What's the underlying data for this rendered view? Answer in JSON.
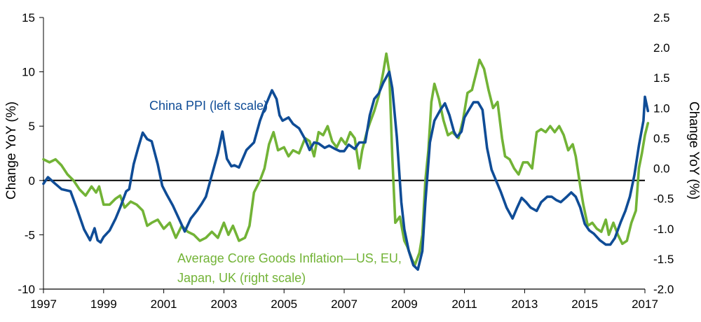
{
  "chart_data": {
    "type": "line",
    "xlabel": "",
    "ylabel_left": "Change YoY (%)",
    "ylabel_right": "Change YoY (%)",
    "xlim": [
      1997,
      2017
    ],
    "ylim_left": [
      -10,
      15
    ],
    "ylim_right": [
      -2.0,
      2.5
    ],
    "x_ticks": [
      "1997",
      "1999",
      "2001",
      "2003",
      "2005",
      "2007",
      "2009",
      "2011",
      "2013",
      "2015",
      "2017"
    ],
    "y_ticks_left": [
      "15",
      "10",
      "5",
      "0",
      "-5",
      "-10"
    ],
    "y_ticks_right": [
      "2.5",
      "2.0",
      "1.5",
      "1.0",
      "0.5",
      "0.0",
      "-0.5",
      "-1.0",
      "-1.5",
      "-2.0"
    ],
    "grid": false,
    "zero_line": true,
    "colors": {
      "china_ppi": "#0f4c96",
      "core_goods": "#72b336"
    },
    "annotations": {
      "china_ppi": "China PPI (left scale)",
      "core_goods_line1": "Average Core Goods Inflation—US, EU,",
      "core_goods_line2": "Japan, UK (right scale)"
    },
    "series": [
      {
        "name": "China PPI (left scale)",
        "axis": "left",
        "x": [
          1997.0,
          1997.15,
          1997.35,
          1997.6,
          1997.9,
          1998.1,
          1998.35,
          1998.55,
          1998.7,
          1998.8,
          1998.9,
          1999.0,
          1999.2,
          1999.4,
          1999.55,
          1999.75,
          1999.85,
          2000.0,
          2000.15,
          2000.3,
          2000.45,
          2000.6,
          2000.8,
          2000.95,
          2001.1,
          2001.3,
          2001.5,
          2001.7,
          2001.9,
          2002.1,
          2002.25,
          2002.4,
          2002.6,
          2002.8,
          2002.95,
          2003.1,
          2003.25,
          2003.35,
          2003.5,
          2003.75,
          2004.0,
          2004.2,
          2004.4,
          2004.6,
          2004.75,
          2004.85,
          2004.95,
          2005.15,
          2005.3,
          2005.5,
          2005.7,
          2005.85,
          2006.0,
          2006.15,
          2006.35,
          2006.5,
          2006.7,
          2006.85,
          2007.0,
          2007.15,
          2007.35,
          2007.5,
          2007.7,
          2007.85,
          2008.0,
          2008.15,
          2008.3,
          2008.5,
          2008.6,
          2008.75,
          2008.9,
          2009.0,
          2009.15,
          2009.3,
          2009.45,
          2009.6,
          2009.7,
          2009.85,
          2010.0,
          2010.2,
          2010.35,
          2010.5,
          2010.65,
          2010.75,
          2010.9,
          2011.0,
          2011.15,
          2011.3,
          2011.45,
          2011.6,
          2011.75,
          2011.9,
          2012.05,
          2012.2,
          2012.4,
          2012.6,
          2012.75,
          2012.9,
          2013.05,
          2013.2,
          2013.4,
          2013.55,
          2013.75,
          2013.9,
          2014.05,
          2014.2,
          2014.4,
          2014.55,
          2014.7,
          2014.85,
          2015.0,
          2015.15,
          2015.3,
          2015.5,
          2015.7,
          2015.85,
          2016.0,
          2016.2,
          2016.35,
          2016.5,
          2016.65,
          2016.8,
          2016.95,
          2017.0,
          2017.1
        ],
        "values": [
          -0.3,
          0.3,
          -0.2,
          -0.8,
          -1.0,
          -2.5,
          -4.5,
          -5.5,
          -4.4,
          -5.5,
          -5.7,
          -5.2,
          -4.6,
          -3.5,
          -2.5,
          -1.0,
          -0.8,
          1.5,
          3.0,
          4.4,
          3.8,
          3.6,
          1.5,
          -0.5,
          -1.3,
          -2.3,
          -3.5,
          -4.7,
          -3.5,
          -2.8,
          -2.2,
          -1.5,
          0.5,
          2.5,
          4.5,
          2.0,
          1.3,
          1.4,
          1.2,
          2.8,
          3.5,
          5.5,
          7.0,
          8.3,
          7.5,
          6.0,
          5.5,
          5.8,
          5.2,
          4.8,
          3.8,
          2.8,
          3.5,
          3.4,
          3.0,
          3.2,
          2.9,
          2.7,
          2.7,
          3.3,
          2.9,
          3.5,
          3.5,
          6.0,
          7.5,
          8.0,
          9.0,
          10.0,
          8.5,
          4.0,
          -2.0,
          -4.5,
          -6.5,
          -7.8,
          -8.2,
          -6.5,
          -2.0,
          3.5,
          5.5,
          6.5,
          7.1,
          6.0,
          4.5,
          4.0,
          4.5,
          5.8,
          6.5,
          7.2,
          7.2,
          6.5,
          3.0,
          1.0,
          0.0,
          -1.0,
          -2.5,
          -3.5,
          -2.5,
          -1.6,
          -2.0,
          -2.5,
          -2.8,
          -2.0,
          -1.5,
          -1.5,
          -1.8,
          -2.0,
          -1.5,
          -1.1,
          -1.5,
          -2.5,
          -4.0,
          -4.6,
          -4.9,
          -5.5,
          -5.9,
          -5.9,
          -5.3,
          -3.8,
          -2.8,
          -1.5,
          0.5,
          3.2,
          5.5,
          7.7,
          6.4
        ],
        "color": "#0f4c96"
      },
      {
        "name": "Average Core Goods Inflation—US, EU, Japan, UK (right scale)",
        "axis": "right",
        "x": [
          1997.0,
          1997.2,
          1997.4,
          1997.6,
          1997.8,
          1998.0,
          1998.2,
          1998.4,
          1998.6,
          1998.75,
          1998.85,
          1999.0,
          1999.2,
          1999.4,
          1999.55,
          1999.7,
          1999.9,
          2000.1,
          2000.3,
          2000.45,
          2000.6,
          2000.8,
          2001.0,
          2001.2,
          2001.4,
          2001.6,
          2001.8,
          2002.0,
          2002.2,
          2002.4,
          2002.6,
          2002.8,
          2003.0,
          2003.15,
          2003.3,
          2003.5,
          2003.7,
          2003.85,
          2004.0,
          2004.2,
          2004.35,
          2004.5,
          2004.65,
          2004.8,
          2005.0,
          2005.15,
          2005.3,
          2005.5,
          2005.7,
          2005.85,
          2006.0,
          2006.15,
          2006.3,
          2006.45,
          2006.6,
          2006.75,
          2006.9,
          2007.05,
          2007.2,
          2007.35,
          2007.5,
          2007.6,
          2007.75,
          2007.85,
          2008.0,
          2008.15,
          2008.3,
          2008.4,
          2008.5,
          2008.6,
          2008.7,
          2008.85,
          2009.0,
          2009.1,
          2009.25,
          2009.35,
          2009.5,
          2009.6,
          2009.7,
          2009.8,
          2009.9,
          2010.0,
          2010.15,
          2010.3,
          2010.45,
          2010.6,
          2010.8,
          2010.95,
          2011.1,
          2011.25,
          2011.4,
          2011.5,
          2011.65,
          2011.8,
          2011.95,
          2012.1,
          2012.25,
          2012.35,
          2012.5,
          2012.65,
          2012.8,
          2012.95,
          2013.1,
          2013.25,
          2013.4,
          2013.55,
          2013.7,
          2013.85,
          2014.0,
          2014.15,
          2014.3,
          2014.45,
          2014.6,
          2014.7,
          2014.85,
          2014.95,
          2015.1,
          2015.25,
          2015.4,
          2015.55,
          2015.7,
          2015.8,
          2015.95,
          2016.1,
          2016.25,
          2016.4,
          2016.55,
          2016.7,
          2016.8,
          2016.9,
          2017.0,
          2017.1
        ],
        "values": [
          0.15,
          0.1,
          0.15,
          0.05,
          -0.1,
          -0.2,
          -0.35,
          -0.45,
          -0.3,
          -0.4,
          -0.3,
          -0.6,
          -0.6,
          -0.5,
          -0.45,
          -0.65,
          -0.55,
          -0.6,
          -0.7,
          -0.95,
          -0.9,
          -0.85,
          -1.0,
          -0.9,
          -1.15,
          -0.95,
          -1.05,
          -1.1,
          -1.2,
          -1.15,
          -1.05,
          -1.15,
          -0.9,
          -1.1,
          -0.95,
          -1.2,
          -1.15,
          -0.95,
          -0.4,
          -0.2,
          0.0,
          0.4,
          0.6,
          0.3,
          0.35,
          0.2,
          0.3,
          0.25,
          0.5,
          0.45,
          0.2,
          0.6,
          0.55,
          0.7,
          0.45,
          0.35,
          0.5,
          0.4,
          0.6,
          0.5,
          0.0,
          0.3,
          0.6,
          0.75,
          0.95,
          1.2,
          1.6,
          1.9,
          1.6,
          0.2,
          -0.9,
          -0.8,
          -1.2,
          -1.3,
          -1.5,
          -1.6,
          -1.4,
          -1.1,
          -0.2,
          0.3,
          1.1,
          1.4,
          1.15,
          0.8,
          0.55,
          0.6,
          0.5,
          0.8,
          1.25,
          1.3,
          1.6,
          1.8,
          1.65,
          1.3,
          1.0,
          1.1,
          0.5,
          0.2,
          0.15,
          0.0,
          -0.1,
          0.1,
          0.1,
          0.0,
          0.6,
          0.65,
          0.6,
          0.7,
          0.6,
          0.7,
          0.55,
          0.3,
          0.4,
          0.2,
          -0.3,
          -0.6,
          -0.95,
          -0.9,
          -1.0,
          -1.05,
          -0.85,
          -1.1,
          -0.9,
          -1.1,
          -1.25,
          -1.2,
          -0.9,
          -0.7,
          0.0,
          0.25,
          0.55,
          0.75
        ],
        "color": "#72b336"
      }
    ]
  }
}
